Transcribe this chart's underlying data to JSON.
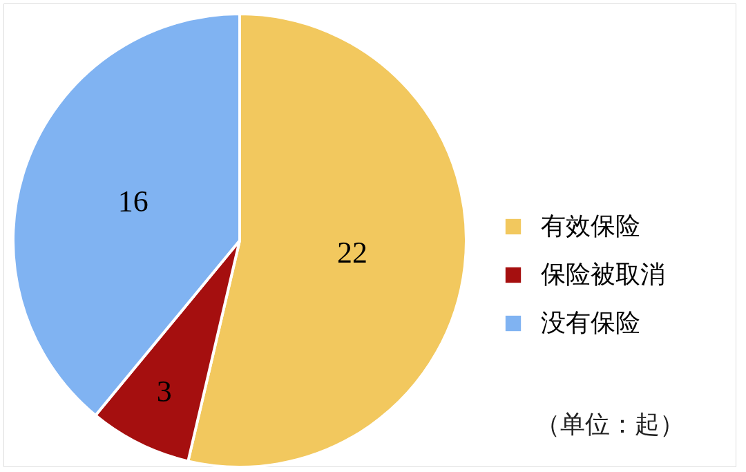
{
  "chart_data": {
    "type": "pie",
    "categories": [
      "有效保险",
      "保险被取消",
      "没有保险"
    ],
    "values": [
      22,
      3,
      16
    ],
    "colors": [
      "#f2c85e",
      "#a50f0f",
      "#80b3f2"
    ],
    "data_labels": true,
    "legend": "right",
    "annotations": [
      "（单位：起）"
    ]
  }
}
